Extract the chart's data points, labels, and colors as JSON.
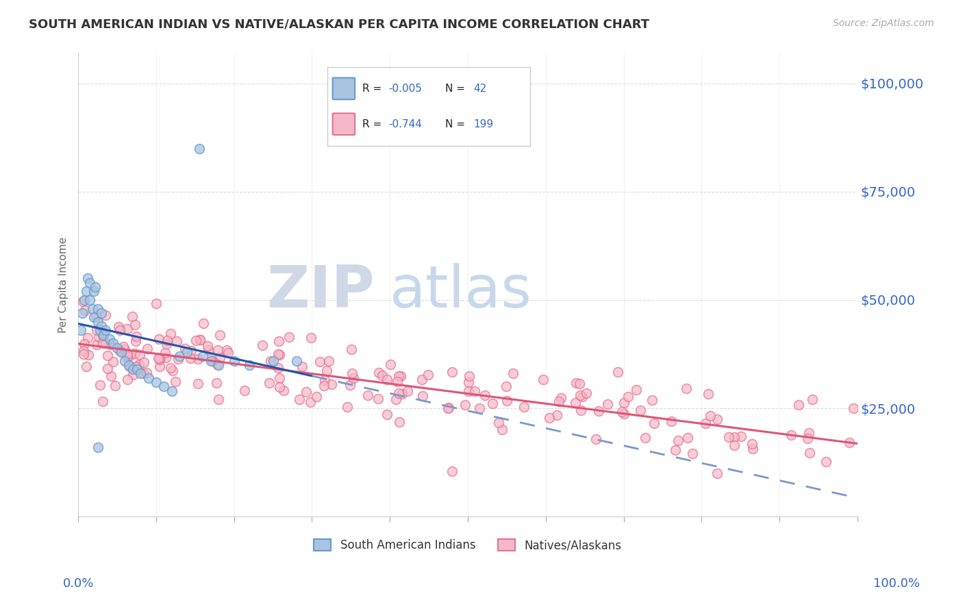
{
  "title": "SOUTH AMERICAN INDIAN VS NATIVE/ALASKAN PER CAPITA INCOME CORRELATION CHART",
  "source_text": "Source: ZipAtlas.com",
  "ylabel": "Per Capita Income",
  "ytick_labels": [
    "",
    "$25,000",
    "$50,000",
    "$75,000",
    "$100,000"
  ],
  "ytick_values": [
    0,
    25000,
    50000,
    75000,
    100000
  ],
  "blue_face_color": "#A8C4E0",
  "blue_edge_color": "#6699CC",
  "pink_face_color": "#F5B8C8",
  "pink_edge_color": "#E87090",
  "blue_line_color": "#2255AA",
  "blue_dash_color": "#7799CC",
  "pink_line_color": "#E05575",
  "legend_label_blue": "South American Indians",
  "legend_label_pink": "Natives/Alaskans",
  "background_color": "#FFFFFF",
  "title_color": "#333333",
  "axis_label_color": "#3366CC",
  "source_color": "#AAAAAA",
  "grid_color": "#CCCCCC",
  "ylim": [
    0,
    107000
  ],
  "xlim": [
    0,
    100
  ],
  "blue_r": "-0.005",
  "blue_n": "42",
  "pink_r": "-0.744",
  "pink_n": "199"
}
